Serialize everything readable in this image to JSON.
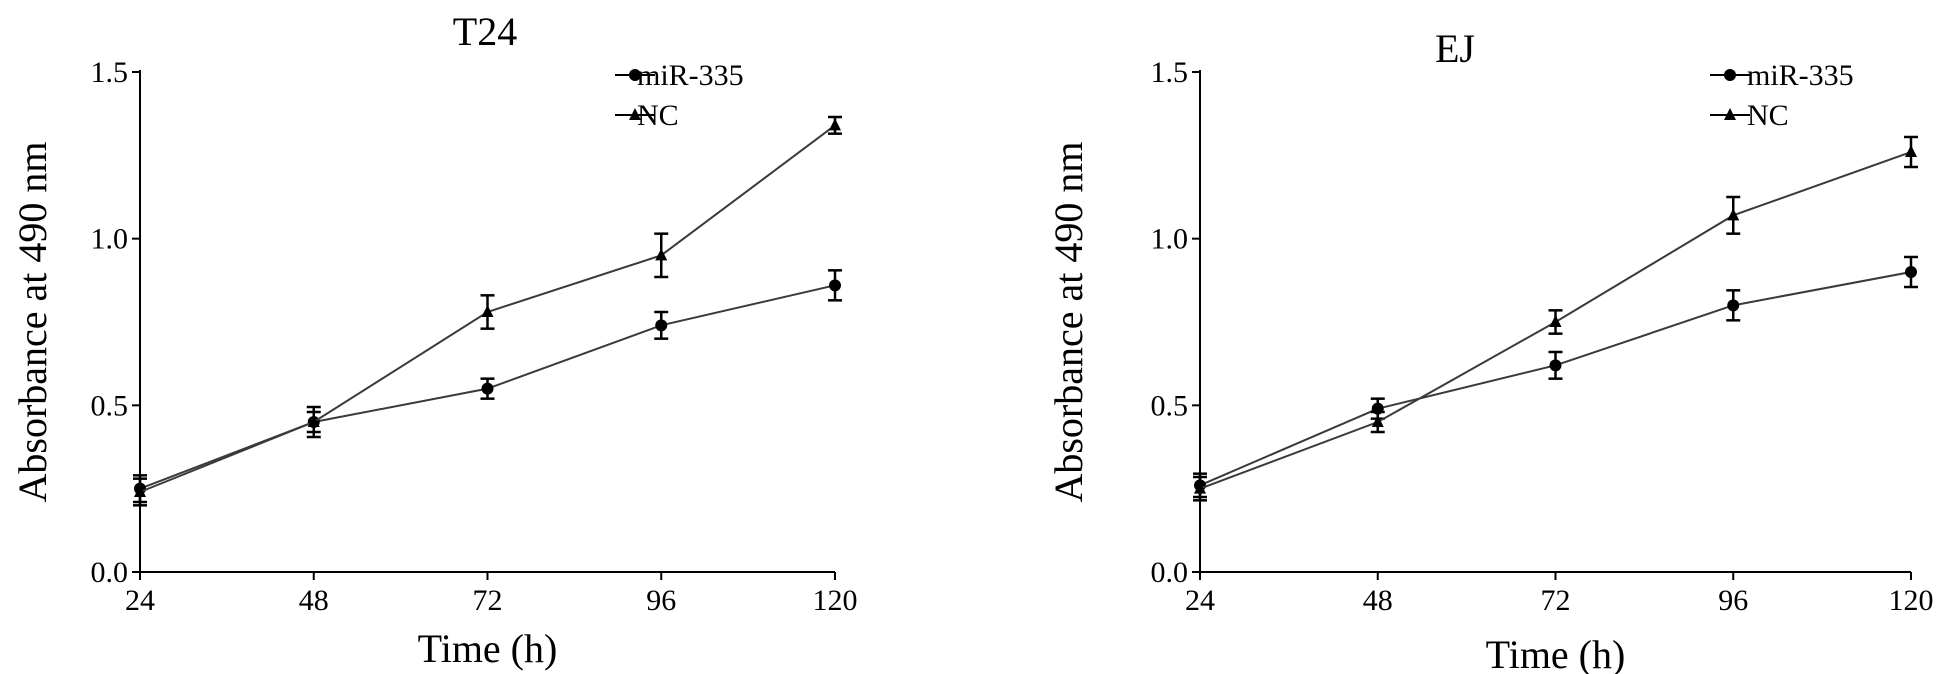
{
  "chart_data": [
    {
      "type": "line",
      "title": "T24",
      "xlabel": "Time (h)",
      "ylabel": "Absorbance at 490 nm",
      "x": [
        24,
        48,
        72,
        96,
        120
      ],
      "xlim": [
        24,
        120
      ],
      "xticks": [
        "24",
        "48",
        "72",
        "96",
        "120"
      ],
      "ylim": [
        0,
        1.5
      ],
      "yticks": [
        "0.0",
        "0.5",
        "1.0",
        "1.5"
      ],
      "grid": false,
      "legend": "top-right",
      "series": [
        {
          "name": "miR-335",
          "marker": "circle",
          "values": [
            0.25,
            0.45,
            0.55,
            0.74,
            0.86
          ],
          "errors": [
            0.04,
            0.03,
            0.03,
            0.04,
            0.045
          ]
        },
        {
          "name": "NC",
          "marker": "triangle",
          "values": [
            0.24,
            0.45,
            0.78,
            0.95,
            1.34
          ],
          "errors": [
            0.04,
            0.045,
            0.05,
            0.065,
            0.025
          ]
        }
      ]
    },
    {
      "type": "line",
      "title": "EJ",
      "xlabel": "Time (h)",
      "ylabel": "Absorbance at 490 nm",
      "x": [
        24,
        48,
        72,
        96,
        120
      ],
      "xlim": [
        24,
        120
      ],
      "xticks": [
        "24",
        "48",
        "72",
        "96",
        "120"
      ],
      "ylim": [
        0,
        1.5
      ],
      "yticks": [
        "0.0",
        "0.5",
        "1.0",
        "1.5"
      ],
      "grid": false,
      "legend": "top-right",
      "series": [
        {
          "name": "miR-335",
          "marker": "circle",
          "values": [
            0.26,
            0.49,
            0.62,
            0.8,
            0.9
          ],
          "errors": [
            0.035,
            0.03,
            0.04,
            0.045,
            0.045
          ]
        },
        {
          "name": "NC",
          "marker": "triangle",
          "values": [
            0.25,
            0.45,
            0.75,
            1.07,
            1.26
          ],
          "errors": [
            0.035,
            0.03,
            0.035,
            0.055,
            0.045
          ]
        }
      ]
    }
  ]
}
